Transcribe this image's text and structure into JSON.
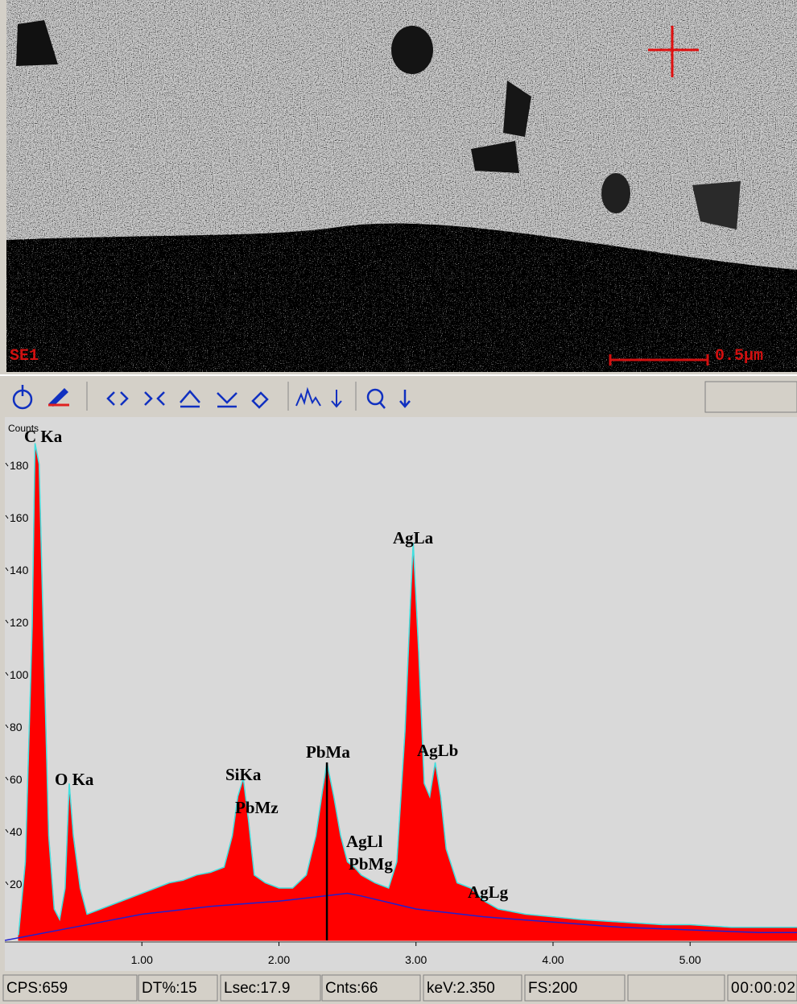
{
  "image": {
    "detector_label": "SE1",
    "scale_label": "0.5µm"
  },
  "chart_data": {
    "type": "area",
    "y_label": "Counts",
    "xlim": [
      0,
      5.78
    ],
    "ylim": [
      0,
      200
    ],
    "xticks": [
      {
        "value": 1,
        "label": "1.00"
      },
      {
        "value": 2,
        "label": "2.00"
      },
      {
        "value": 3,
        "label": "3.00"
      },
      {
        "value": 4,
        "label": "4.00"
      },
      {
        "value": 5,
        "label": "5.00"
      }
    ],
    "yticks": [
      20,
      40,
      60,
      80,
      100,
      120,
      140,
      160,
      180
    ],
    "spectrum": {
      "color": "#ff0000",
      "outline_color": "#40e0e0",
      "x": [
        0.1,
        0.15,
        0.2,
        0.22,
        0.25,
        0.28,
        0.32,
        0.36,
        0.4,
        0.44,
        0.47,
        0.5,
        0.55,
        0.6,
        0.7,
        0.8,
        0.9,
        1.0,
        1.1,
        1.2,
        1.3,
        1.4,
        1.5,
        1.6,
        1.66,
        1.7,
        1.74,
        1.78,
        1.82,
        1.9,
        2.0,
        2.1,
        2.2,
        2.27,
        2.32,
        2.35,
        2.4,
        2.45,
        2.5,
        2.55,
        2.6,
        2.7,
        2.8,
        2.86,
        2.92,
        2.96,
        2.98,
        3.02,
        3.06,
        3.1,
        3.14,
        3.18,
        3.22,
        3.3,
        3.4,
        3.5,
        3.6,
        3.8,
        4.0,
        4.2,
        4.5,
        4.8,
        5.0,
        5.3,
        5.6,
        5.78
      ],
      "values": [
        2,
        30,
        120,
        190,
        182,
        120,
        40,
        12,
        8,
        20,
        60,
        40,
        20,
        10,
        12,
        14,
        16,
        18,
        20,
        22,
        23,
        25,
        26,
        28,
        40,
        55,
        62,
        45,
        25,
        22,
        20,
        20,
        25,
        40,
        58,
        68,
        55,
        40,
        30,
        28,
        25,
        22,
        20,
        30,
        80,
        130,
        152,
        110,
        60,
        55,
        68,
        55,
        35,
        22,
        20,
        15,
        12,
        10,
        9,
        8,
        7,
        6,
        6,
        5,
        5,
        5
      ]
    },
    "background": {
      "color": "#2020d0",
      "x": [
        0.0,
        0.5,
        1.0,
        1.5,
        2.0,
        2.5,
        2.6,
        3.0,
        3.5,
        4.0,
        4.5,
        5.0,
        5.5,
        5.78
      ],
      "values": [
        0,
        5,
        10,
        13,
        15,
        18,
        17,
        12,
        9,
        7,
        5,
        4,
        3,
        3
      ]
    },
    "cursor": 2.35,
    "annotations": [
      "C Ka",
      "O Ka",
      "SiKa",
      "PbMz",
      "PbMa",
      "AgLa",
      "AgLb",
      "AgLl",
      "PbMg",
      "AgLg"
    ]
  },
  "status_bar": [
    "CPS:659",
    "DT%:15",
    "Lsec:17.9",
    "Cnts:66",
    "keV:2.350",
    "FS:200",
    "00:00:02"
  ]
}
